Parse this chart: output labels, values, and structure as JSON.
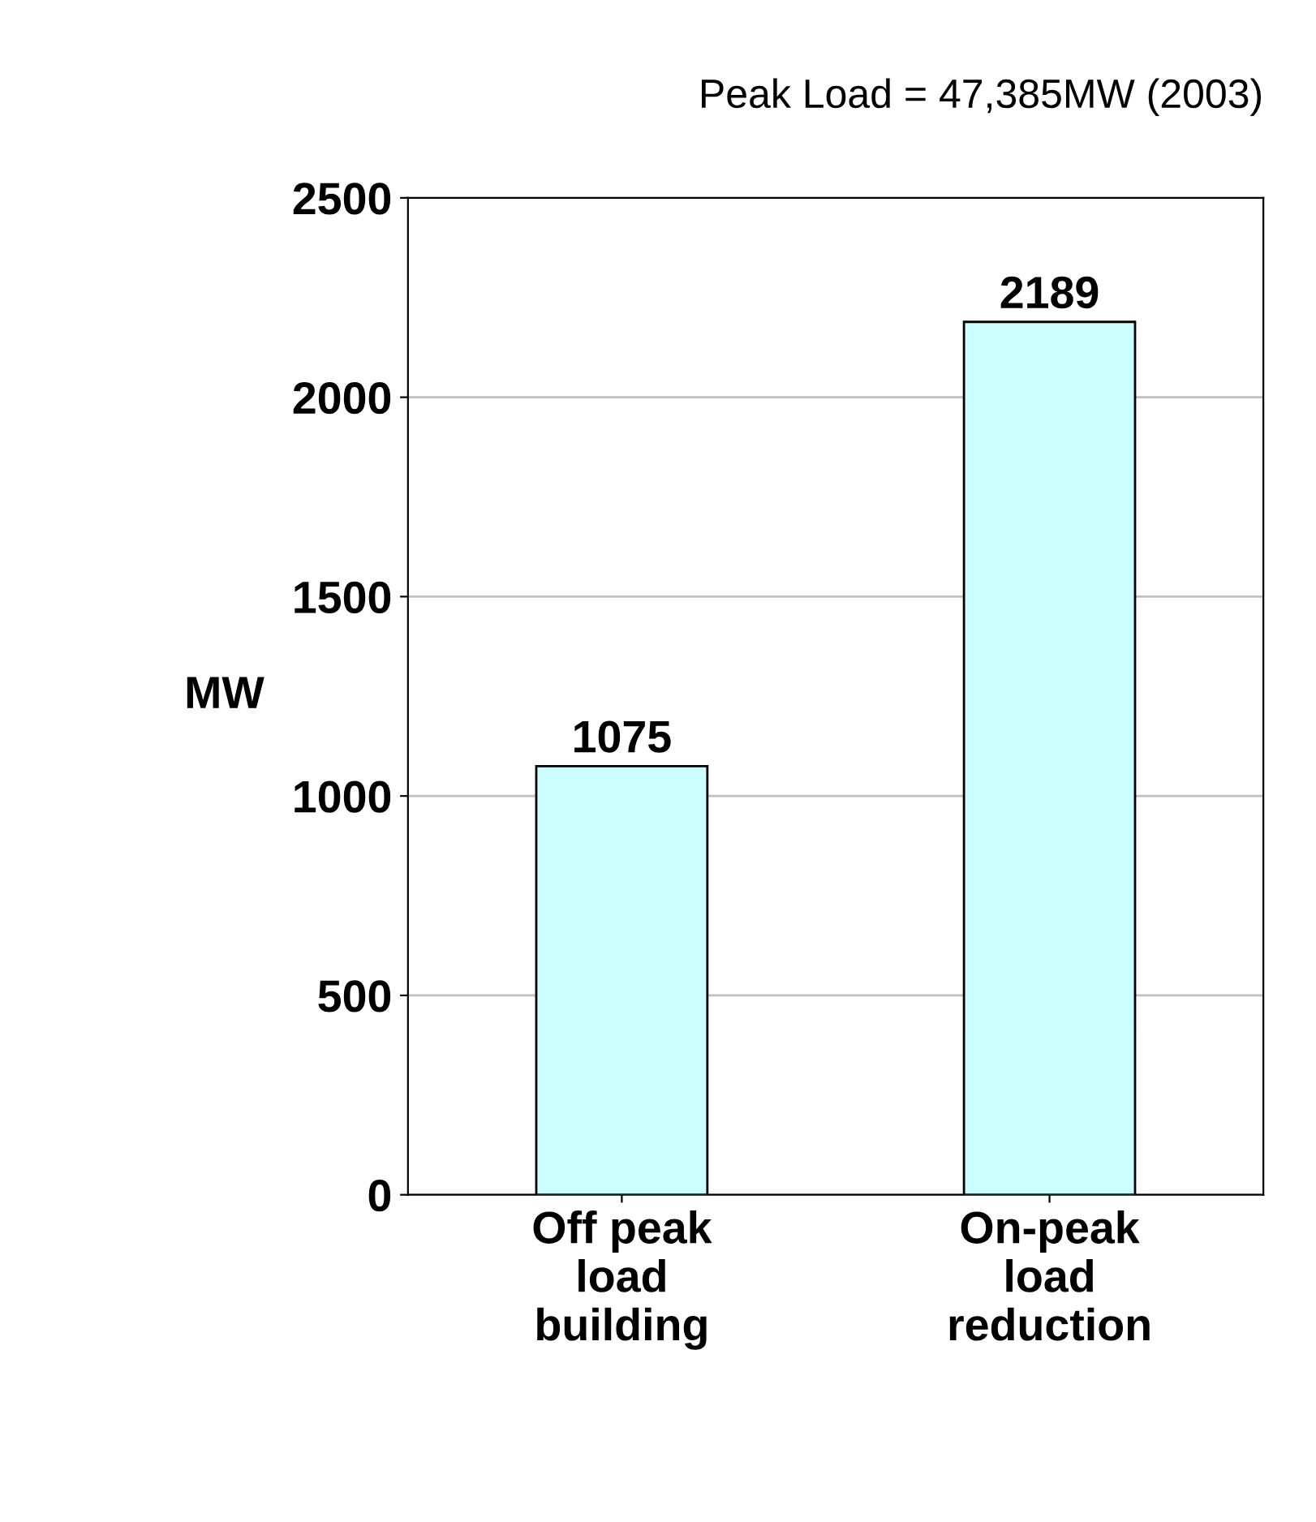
{
  "chart_data": {
    "type": "bar",
    "title": "Peak Load = 47,385MW (2003)",
    "ylabel": "MW",
    "categories": [
      "Off peak\nload\nbuilding",
      "On-peak\nload\nreduction"
    ],
    "values": [
      1075,
      2189
    ],
    "color": "#ccffff",
    "ylim": [
      0,
      2500
    ],
    "yticks": [
      0,
      500,
      1000,
      1500,
      2000,
      2500
    ],
    "grid": "y",
    "data_labels": true
  }
}
